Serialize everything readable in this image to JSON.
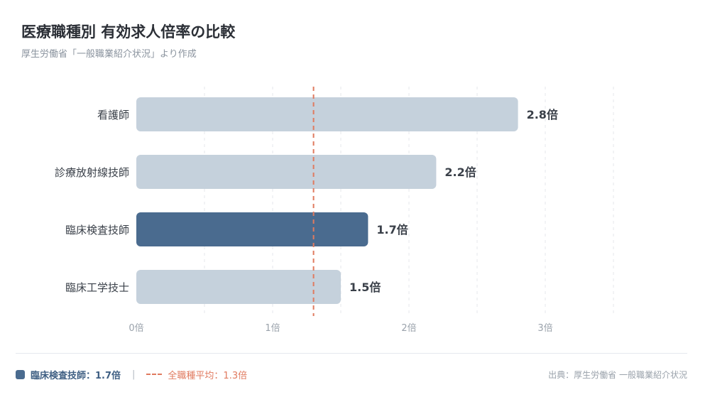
{
  "header": {
    "title": "医療職種別 有効求人倍率の比較",
    "subtitle": "厚生労働省「一般職業紹介状況」より作成"
  },
  "chart_data": {
    "type": "bar",
    "orientation": "horizontal",
    "categories": [
      "看護師",
      "診療放射線技師",
      "臨床検査技師",
      "臨床工学技士"
    ],
    "values": [
      2.8,
      2.2,
      1.7,
      1.5
    ],
    "value_labels": [
      "2.8倍",
      "2.2倍",
      "1.7倍",
      "1.5倍"
    ],
    "highlight": "臨床検査技師",
    "xticks": [
      {
        "value": 0,
        "label": "0倍"
      },
      {
        "value": 1,
        "label": "1倍"
      },
      {
        "value": 2,
        "label": "2倍"
      },
      {
        "value": 3,
        "label": "3倍"
      }
    ],
    "xlim": [
      0,
      3.5
    ],
    "reference_line": {
      "value": 1.3
    },
    "grid": true,
    "colors": {
      "highlight": "#4a6b8f",
      "default": "#c5d1dc",
      "reference": "#e07a5f"
    }
  },
  "legend": {
    "highlight_label": "臨床検査技師：1.7倍",
    "separator": "|",
    "average_label": "全職種平均：1.3倍"
  },
  "footer": {
    "source": "出典：厚生労働省 一般職業紹介状況"
  }
}
